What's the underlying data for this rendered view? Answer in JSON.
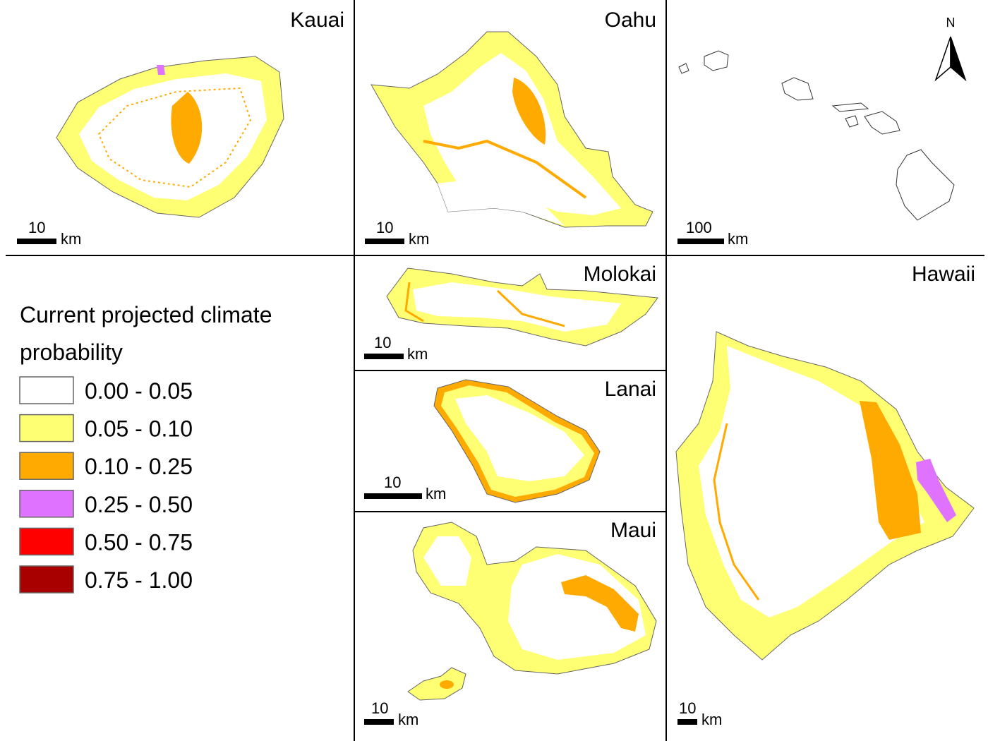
{
  "panels": {
    "kauai": {
      "name": "Kauai",
      "scale_value": "10",
      "scale_unit": "km"
    },
    "oahu": {
      "name": "Oahu",
      "scale_value": "10",
      "scale_unit": "km"
    },
    "state": {
      "north": "N",
      "scale_value": "100",
      "scale_unit": "km"
    },
    "molokai": {
      "name": "Molokai",
      "scale_value": "10",
      "scale_unit": "km"
    },
    "lanai": {
      "name": "Lanai",
      "scale_value": "10",
      "scale_unit": "km"
    },
    "maui": {
      "name": "Maui",
      "scale_value": "10",
      "scale_unit": "km"
    },
    "hawaii": {
      "name": "Hawaii",
      "scale_value": "10",
      "scale_unit": "km"
    }
  },
  "legend": {
    "title": "Current projected climate probability",
    "items": [
      {
        "label": "0.00 - 0.05",
        "color": "#ffffff"
      },
      {
        "label": "0.05 - 0.10",
        "color": "#ffff73"
      },
      {
        "label": "0.10 - 0.25",
        "color": "#ffaa00"
      },
      {
        "label": "0.25 - 0.50",
        "color": "#df73ff"
      },
      {
        "label": "0.50 - 0.75",
        "color": "#ff0000"
      },
      {
        "label": "0.75 - 1.00",
        "color": "#a80000"
      }
    ]
  }
}
